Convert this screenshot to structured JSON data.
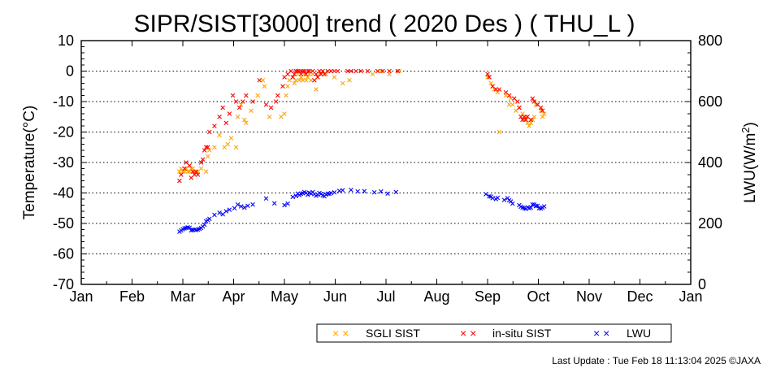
{
  "chart_data": {
    "type": "scatter",
    "title": "SIPR/SIST[3000] trend ( 2020 Des ) ( THU_L )",
    "ylabel_left": "Temperature(°C)",
    "ylabel_right_main": "LWU(W/m",
    "ylabel_right_sup": "2",
    "ylabel_right_close": ")",
    "ylim_left": [
      -70,
      10
    ],
    "yticks_left": [
      "10",
      "0",
      "-10",
      "-20",
      "-30",
      "-40",
      "-50",
      "-60",
      "-70"
    ],
    "ylim_right": [
      0,
      800
    ],
    "yticks_right": [
      "800",
      "600",
      "400",
      "200",
      "0"
    ],
    "x_categories": [
      "Jan",
      "Feb",
      "Mar",
      "Apr",
      "May",
      "Jun",
      "Jul",
      "Aug",
      "Sep",
      "Oct",
      "Nov",
      "Dec",
      "Jan"
    ],
    "xlim_days": [
      0,
      366
    ],
    "grid": "horizontal dotted",
    "legend_position": "bottom-right",
    "series": [
      {
        "name": "SGLI SIST",
        "color": "#ffa500",
        "axis": "left",
        "points": [
          [
            59,
            -33
          ],
          [
            60,
            -32
          ],
          [
            61,
            -33
          ],
          [
            62,
            -33
          ],
          [
            63,
            -32
          ],
          [
            64,
            -33
          ],
          [
            65,
            -33
          ],
          [
            66,
            -32
          ],
          [
            67,
            -32
          ],
          [
            68,
            -33
          ],
          [
            70,
            -33
          ],
          [
            72,
            -32
          ],
          [
            75,
            -33
          ],
          [
            76,
            -28
          ],
          [
            77,
            -26
          ],
          [
            80,
            -25
          ],
          [
            83,
            -21
          ],
          [
            86,
            -25
          ],
          [
            88,
            -24
          ],
          [
            90,
            -22
          ],
          [
            93,
            -25
          ],
          [
            94,
            -15
          ],
          [
            96,
            -11
          ],
          [
            98,
            -16
          ],
          [
            99,
            -17
          ],
          [
            102,
            -13
          ],
          [
            106,
            -8
          ],
          [
            109,
            -3
          ],
          [
            110,
            -5
          ],
          [
            113,
            -15
          ],
          [
            120,
            -15
          ],
          [
            122,
            -14
          ],
          [
            123,
            -8
          ],
          [
            124,
            -5
          ],
          [
            125,
            -3
          ],
          [
            127,
            -2
          ],
          [
            128,
            -4
          ],
          [
            129,
            -3
          ],
          [
            130,
            -1
          ],
          [
            131,
            -3
          ],
          [
            132,
            -2
          ],
          [
            133,
            -3
          ],
          [
            134,
            -1
          ],
          [
            135,
            -3
          ],
          [
            136,
            -2
          ],
          [
            137,
            -1
          ],
          [
            138,
            -3
          ],
          [
            139,
            -1
          ],
          [
            141,
            -6
          ],
          [
            142,
            -2
          ],
          [
            143,
            -1
          ],
          [
            144,
            -1
          ],
          [
            147,
            -1
          ],
          [
            152,
            -2
          ],
          [
            157,
            -4
          ],
          [
            161,
            -3
          ],
          [
            175,
            -1
          ],
          [
            178,
            0
          ],
          [
            180,
            0
          ],
          [
            185,
            -1
          ],
          [
            191,
            0
          ],
          [
            244,
            -2
          ],
          [
            246,
            -4
          ],
          [
            248,
            -6
          ],
          [
            250,
            -7
          ],
          [
            251,
            -20
          ],
          [
            255,
            -8
          ],
          [
            257,
            -11
          ],
          [
            258,
            -9
          ],
          [
            259,
            -11
          ],
          [
            261,
            -13
          ],
          [
            263,
            -12
          ],
          [
            265,
            -14
          ],
          [
            266,
            -16
          ],
          [
            267,
            -15
          ],
          [
            268,
            -17
          ],
          [
            269,
            -18
          ],
          [
            270,
            -17
          ],
          [
            271,
            -16
          ],
          [
            272,
            -15
          ],
          [
            273,
            -11
          ],
          [
            274,
            -11
          ],
          [
            276,
            -13
          ],
          [
            277,
            -15
          ],
          [
            278,
            -14
          ]
        ]
      },
      {
        "name": "in-situ SIST",
        "color": "#ff0000",
        "axis": "left",
        "points": [
          [
            59,
            -36
          ],
          [
            60,
            -34
          ],
          [
            62,
            -32
          ],
          [
            63,
            -30
          ],
          [
            65,
            -31
          ],
          [
            66,
            -35
          ],
          [
            67,
            -33
          ],
          [
            68,
            -34
          ],
          [
            69,
            -33
          ],
          [
            70,
            -34
          ],
          [
            72,
            -30
          ],
          [
            73,
            -29
          ],
          [
            74,
            -26
          ],
          [
            75,
            -25
          ],
          [
            76,
            -25
          ],
          [
            77,
            -20
          ],
          [
            80,
            -18
          ],
          [
            83,
            -15
          ],
          [
            85,
            -12
          ],
          [
            87,
            -17
          ],
          [
            89,
            -14
          ],
          [
            91,
            -8
          ],
          [
            93,
            -10
          ],
          [
            95,
            -12
          ],
          [
            97,
            -10
          ],
          [
            99,
            -8
          ],
          [
            103,
            -10
          ],
          [
            107,
            -3
          ],
          [
            111,
            -11
          ],
          [
            114,
            -12
          ],
          [
            117,
            -10
          ],
          [
            118,
            -8
          ],
          [
            121,
            -5
          ],
          [
            122,
            -2
          ],
          [
            124,
            -1
          ],
          [
            126,
            0
          ],
          [
            127,
            -2
          ],
          [
            128,
            -1
          ],
          [
            129,
            0
          ],
          [
            130,
            0
          ],
          [
            131,
            0
          ],
          [
            132,
            -1
          ],
          [
            133,
            0
          ],
          [
            134,
            0
          ],
          [
            135,
            -1
          ],
          [
            136,
            0
          ],
          [
            137,
            0
          ],
          [
            139,
            0
          ],
          [
            140,
            -3
          ],
          [
            141,
            -1
          ],
          [
            142,
            -2
          ],
          [
            143,
            0
          ],
          [
            144,
            -1
          ],
          [
            145,
            0
          ],
          [
            146,
            -1
          ],
          [
            148,
            0
          ],
          [
            150,
            0
          ],
          [
            152,
            0
          ],
          [
            154,
            0
          ],
          [
            160,
            0
          ],
          [
            162,
            0
          ],
          [
            165,
            0
          ],
          [
            168,
            0
          ],
          [
            172,
            0
          ],
          [
            178,
            0
          ],
          [
            181,
            0
          ],
          [
            185,
            0
          ],
          [
            190,
            0
          ],
          [
            244,
            -1
          ],
          [
            245,
            -2
          ],
          [
            247,
            -5
          ],
          [
            249,
            -6
          ],
          [
            251,
            -6
          ],
          [
            255,
            -7
          ],
          [
            257,
            -8
          ],
          [
            260,
            -9
          ],
          [
            262,
            -10
          ],
          [
            263,
            -12
          ],
          [
            264,
            -15
          ],
          [
            265,
            -16
          ],
          [
            266,
            -15
          ],
          [
            267,
            -16
          ],
          [
            268,
            -15
          ],
          [
            270,
            -16
          ],
          [
            271,
            -9
          ],
          [
            272,
            -10
          ],
          [
            274,
            -11
          ],
          [
            276,
            -12
          ],
          [
            277,
            -13
          ]
        ]
      },
      {
        "name": "LWU",
        "color": "#0000ff",
        "axis": "right",
        "points": [
          [
            59,
            173
          ],
          [
            60,
            177
          ],
          [
            61,
            181
          ],
          [
            62,
            184
          ],
          [
            63,
            185
          ],
          [
            64,
            187
          ],
          [
            65,
            186
          ],
          [
            66,
            177
          ],
          [
            67,
            179
          ],
          [
            68,
            180
          ],
          [
            69,
            178
          ],
          [
            70,
            180
          ],
          [
            71,
            182
          ],
          [
            72,
            185
          ],
          [
            73,
            190
          ],
          [
            74,
            196
          ],
          [
            75,
            207
          ],
          [
            76,
            211
          ],
          [
            77,
            215
          ],
          [
            80,
            228
          ],
          [
            83,
            235
          ],
          [
            85,
            230
          ],
          [
            87,
            240
          ],
          [
            89,
            245
          ],
          [
            92,
            250
          ],
          [
            94,
            262
          ],
          [
            96,
            256
          ],
          [
            98,
            252
          ],
          [
            100,
            258
          ],
          [
            103,
            262
          ],
          [
            111,
            282
          ],
          [
            116,
            266
          ],
          [
            122,
            260
          ],
          [
            124,
            265
          ],
          [
            127,
            287
          ],
          [
            129,
            290
          ],
          [
            130,
            298
          ],
          [
            131,
            293
          ],
          [
            132,
            297
          ],
          [
            133,
            299
          ],
          [
            134,
            303
          ],
          [
            135,
            300
          ],
          [
            136,
            294
          ],
          [
            137,
            301
          ],
          [
            138,
            298
          ],
          [
            139,
            303
          ],
          [
            140,
            296
          ],
          [
            141,
            291
          ],
          [
            142,
            294
          ],
          [
            143,
            300
          ],
          [
            144,
            297
          ],
          [
            145,
            292
          ],
          [
            146,
            289
          ],
          [
            147,
            295
          ],
          [
            148,
            298
          ],
          [
            149,
            297
          ],
          [
            150,
            300
          ],
          [
            152,
            302
          ],
          [
            155,
            307
          ],
          [
            157,
            309
          ],
          [
            162,
            310
          ],
          [
            166,
            305
          ],
          [
            170,
            306
          ],
          [
            176,
            302
          ],
          [
            180,
            305
          ],
          [
            184,
            298
          ],
          [
            189,
            303
          ],
          [
            243,
            296
          ],
          [
            245,
            289
          ],
          [
            246,
            288
          ],
          [
            247,
            283
          ],
          [
            249,
            280
          ],
          [
            250,
            284
          ],
          [
            254,
            277
          ],
          [
            256,
            283
          ],
          [
            257,
            276
          ],
          [
            258,
            272
          ],
          [
            259,
            265
          ],
          [
            263,
            260
          ],
          [
            264,
            255
          ],
          [
            265,
            252
          ],
          [
            266,
            250
          ],
          [
            267,
            248
          ],
          [
            268,
            253
          ],
          [
            269,
            250
          ],
          [
            270,
            252
          ],
          [
            271,
            262
          ],
          [
            272,
            262
          ],
          [
            273,
            257
          ],
          [
            274,
            258
          ],
          [
            275,
            250
          ],
          [
            276,
            249
          ],
          [
            277,
            252
          ],
          [
            278,
            256
          ]
        ]
      }
    ]
  },
  "legend": {
    "items": [
      {
        "marker": "× ×",
        "label": "SGLI SIST",
        "color": "#ffa500"
      },
      {
        "marker": "× ×",
        "label": "in-situ SIST",
        "color": "#ff0000"
      },
      {
        "marker": "× ×",
        "label": "LWU",
        "color": "#0000ff"
      }
    ]
  },
  "footer": {
    "last_update": "Last Update : Tue Feb 18 11:13:04 2025  ©JAXA"
  }
}
